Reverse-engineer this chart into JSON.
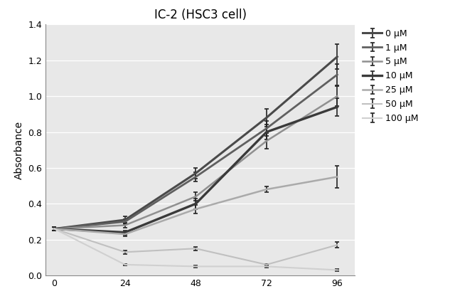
{
  "title": "IC-2 (HSC3 cell)",
  "ylabel": "Absorbance",
  "xlabel": "",
  "x": [
    0,
    24,
    48,
    72,
    96
  ],
  "series": [
    {
      "label": "0 μM",
      "color": "#4a4a4a",
      "linewidth": 2.2,
      "values": [
        0.26,
        0.31,
        0.57,
        0.88,
        1.22
      ],
      "errors": [
        0.01,
        0.02,
        0.03,
        0.05,
        0.07
      ]
    },
    {
      "label": "1 μM",
      "color": "#606060",
      "linewidth": 2.0,
      "values": [
        0.26,
        0.3,
        0.55,
        0.82,
        1.12
      ],
      "errors": [
        0.01,
        0.015,
        0.025,
        0.04,
        0.06
      ]
    },
    {
      "label": "5 μM",
      "color": "#909090",
      "linewidth": 1.8,
      "values": [
        0.26,
        0.28,
        0.44,
        0.75,
        1.0
      ],
      "errors": [
        0.01,
        0.015,
        0.025,
        0.045,
        0.055
      ]
    },
    {
      "label": "10 μM",
      "color": "#3a3a3a",
      "linewidth": 2.4,
      "values": [
        0.26,
        0.24,
        0.4,
        0.8,
        0.94
      ],
      "errors": [
        0.01,
        0.012,
        0.03,
        0.04,
        0.05
      ]
    },
    {
      "label": "25 μM",
      "color": "#aaaaaa",
      "linewidth": 1.8,
      "values": [
        0.26,
        0.23,
        0.37,
        0.48,
        0.55
      ],
      "errors": [
        0.01,
        0.01,
        0.025,
        0.015,
        0.06
      ]
    },
    {
      "label": "50 μM",
      "color": "#c0c0c0",
      "linewidth": 1.5,
      "values": [
        0.26,
        0.13,
        0.15,
        0.06,
        0.17
      ],
      "errors": [
        0.01,
        0.01,
        0.01,
        0.005,
        0.015
      ]
    },
    {
      "label": "100 μM",
      "color": "#d0d0d0",
      "linewidth": 1.5,
      "values": [
        0.26,
        0.06,
        0.05,
        0.05,
        0.03
      ],
      "errors": [
        0.01,
        0.005,
        0.005,
        0.005,
        0.005
      ]
    }
  ],
  "ylim": [
    0.0,
    1.4
  ],
  "yticks": [
    0.0,
    0.2,
    0.4,
    0.6,
    0.8,
    1.0,
    1.2,
    1.4
  ],
  "xticks": [
    0,
    24,
    48,
    72,
    96
  ],
  "plot_bg_color": "#e8e8e8",
  "background_color": "#ffffff",
  "grid_color": "#ffffff"
}
